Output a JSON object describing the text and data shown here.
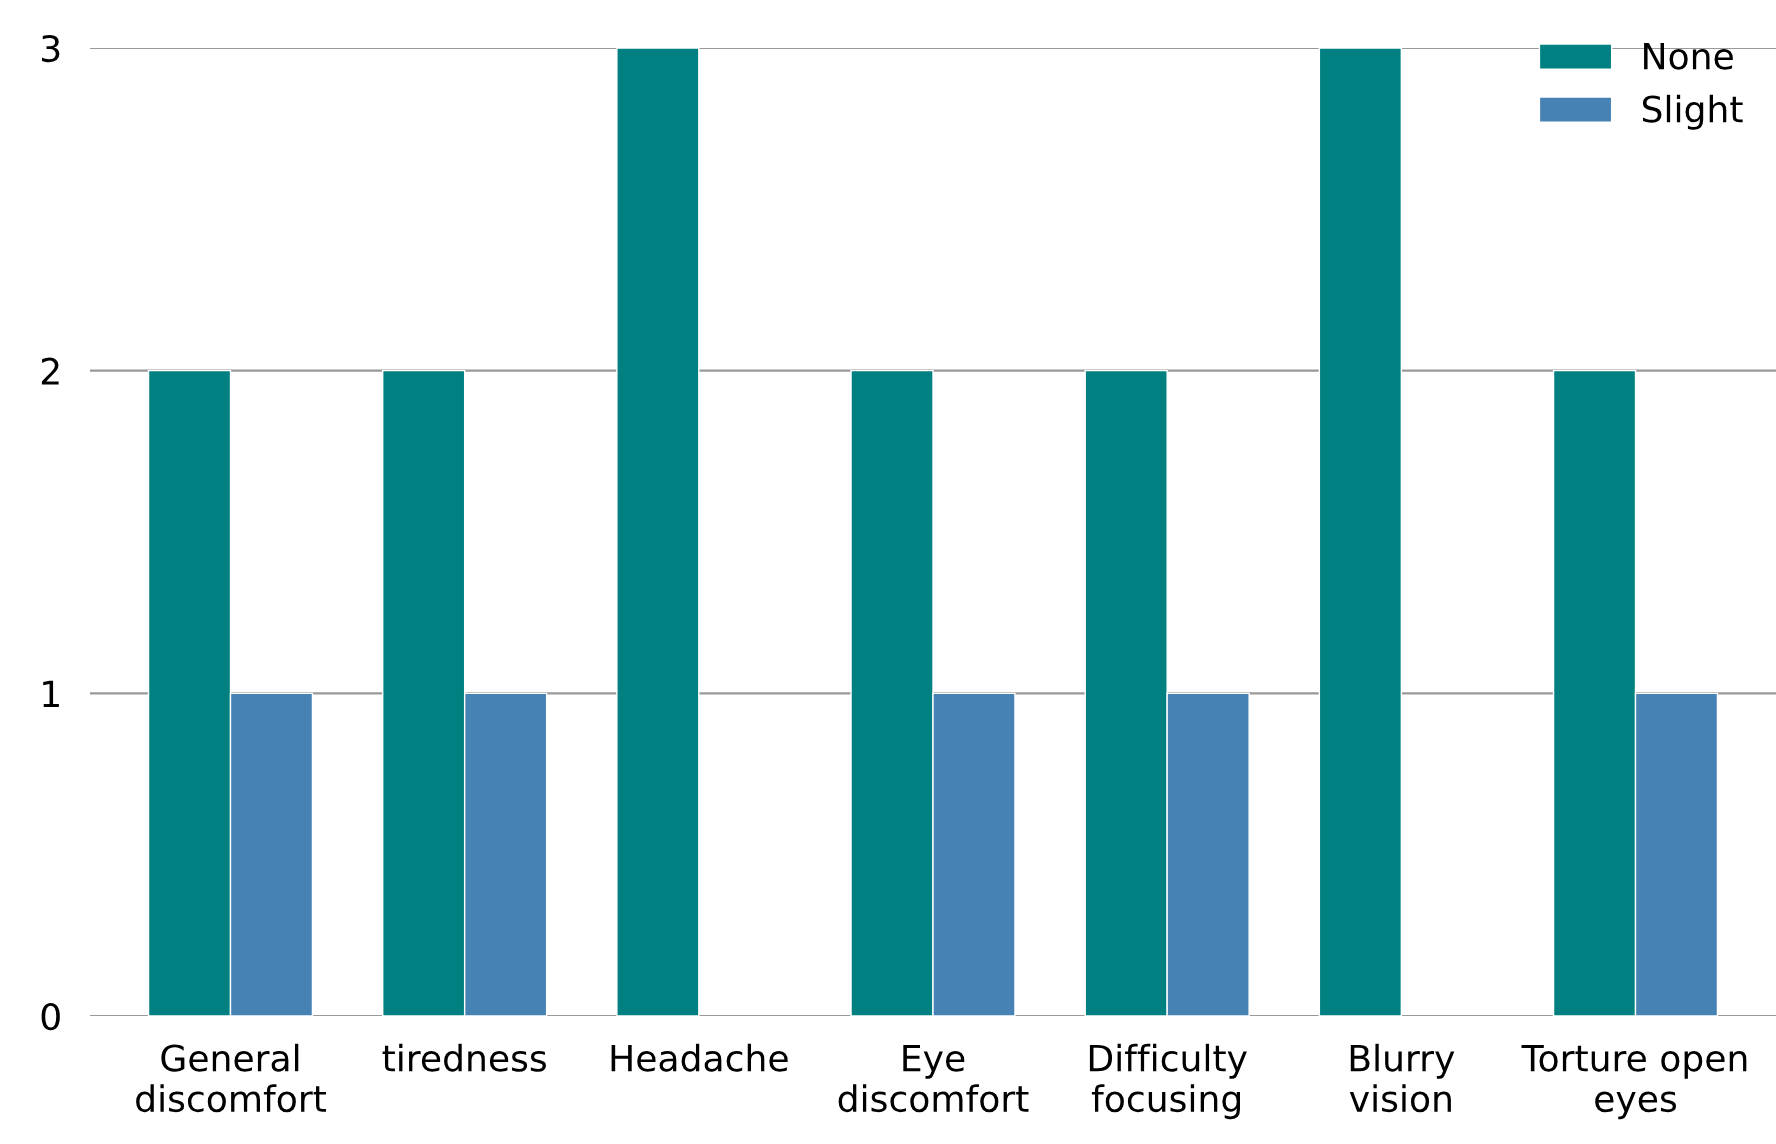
{
  "chart_data": {
    "type": "bar",
    "categories": [
      "General\ndiscomfort",
      "tiredness",
      "Headache",
      "Eye\ndiscomfort",
      "Difficulty\nfocusing",
      "Blurry\nvision",
      "Torture open\neyes"
    ],
    "series": [
      {
        "name": "None",
        "color": "#008080",
        "values": [
          2,
          2,
          3,
          2,
          2,
          3,
          2
        ]
      },
      {
        "name": "Slight",
        "color": "#4682b4",
        "values": [
          1,
          1,
          null,
          1,
          1,
          null,
          1
        ]
      }
    ],
    "ylim": [
      0,
      3
    ],
    "yticks": [
      0,
      1,
      2,
      3
    ],
    "grid": "y",
    "legend": "top right"
  }
}
